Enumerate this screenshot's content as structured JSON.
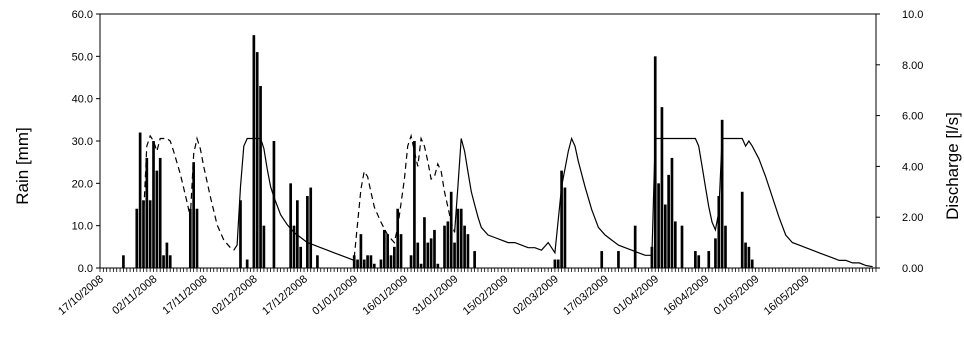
{
  "chart_data": {
    "type": "bar",
    "title": "",
    "ylabel": "Rain [mm]",
    "y2label": "Discharge [l/s]",
    "ylim": [
      0,
      60
    ],
    "y2lim": [
      0,
      10
    ],
    "xlim_days": [
      0,
      232
    ],
    "yticks": [
      "0.0",
      "10.0",
      "20.0",
      "30.0",
      "40.0",
      "50.0",
      "60.0"
    ],
    "y2ticks": [
      "0.00",
      "2.00",
      "4.00",
      "6.00",
      "8.00",
      "10.0"
    ],
    "xticks": [
      {
        "label": "17/10/2008",
        "day": 0
      },
      {
        "label": "02/11/2008",
        "day": 16
      },
      {
        "label": "17/11/2008",
        "day": 31
      },
      {
        "label": "02/12/2008",
        "day": 46
      },
      {
        "label": "17/12/2008",
        "day": 61
      },
      {
        "label": "01/01/2009",
        "day": 76
      },
      {
        "label": "16/01/2009",
        "day": 91
      },
      {
        "label": "31/01/2009",
        "day": 106
      },
      {
        "label": "15/02/2009",
        "day": 121
      },
      {
        "label": "02/03/2009",
        "day": 136
      },
      {
        "label": "17/03/2009",
        "day": 151
      },
      {
        "label": "01/04/2009",
        "day": 166
      },
      {
        "label": "16/04/2009",
        "day": 181
      },
      {
        "label": "01/05/2009",
        "day": 196
      },
      {
        "label": "16/05/2009",
        "day": 211
      }
    ],
    "series": [
      {
        "type": "bar",
        "axis": "left",
        "color": "#000000",
        "points": [
          {
            "day": 7,
            "value": 3
          },
          {
            "day": 11,
            "value": 14
          },
          {
            "day": 12,
            "value": 32
          },
          {
            "day": 13,
            "value": 16
          },
          {
            "day": 14,
            "value": 26
          },
          {
            "day": 15,
            "value": 16
          },
          {
            "day": 16,
            "value": 30
          },
          {
            "day": 17,
            "value": 23
          },
          {
            "day": 18,
            "value": 26
          },
          {
            "day": 19,
            "value": 3
          },
          {
            "day": 20,
            "value": 6
          },
          {
            "day": 21,
            "value": 3
          },
          {
            "day": 27,
            "value": 14
          },
          {
            "day": 28,
            "value": 25
          },
          {
            "day": 29,
            "value": 14
          },
          {
            "day": 42,
            "value": 16
          },
          {
            "day": 44,
            "value": 2
          },
          {
            "day": 46,
            "value": 55
          },
          {
            "day": 47,
            "value": 51
          },
          {
            "day": 48,
            "value": 43
          },
          {
            "day": 49,
            "value": 10
          },
          {
            "day": 52,
            "value": 30
          },
          {
            "day": 57,
            "value": 20
          },
          {
            "day": 58,
            "value": 10
          },
          {
            "day": 59,
            "value": 16
          },
          {
            "day": 60,
            "value": 5
          },
          {
            "day": 62,
            "value": 17
          },
          {
            "day": 63,
            "value": 19
          },
          {
            "day": 65,
            "value": 3
          },
          {
            "day": 76,
            "value": 3
          },
          {
            "day": 77,
            "value": 2
          },
          {
            "day": 78,
            "value": 8
          },
          {
            "day": 79,
            "value": 2
          },
          {
            "day": 80,
            "value": 3
          },
          {
            "day": 81,
            "value": 3
          },
          {
            "day": 82,
            "value": 1
          },
          {
            "day": 84,
            "value": 2
          },
          {
            "day": 85,
            "value": 9
          },
          {
            "day": 86,
            "value": 8
          },
          {
            "day": 87,
            "value": 3
          },
          {
            "day": 88,
            "value": 5
          },
          {
            "day": 89,
            "value": 14
          },
          {
            "day": 90,
            "value": 8
          },
          {
            "day": 93,
            "value": 3
          },
          {
            "day": 94,
            "value": 30
          },
          {
            "day": 95,
            "value": 6
          },
          {
            "day": 96,
            "value": 1
          },
          {
            "day": 97,
            "value": 12
          },
          {
            "day": 98,
            "value": 6
          },
          {
            "day": 99,
            "value": 7
          },
          {
            "day": 100,
            "value": 9
          },
          {
            "day": 101,
            "value": 1
          },
          {
            "day": 103,
            "value": 10
          },
          {
            "day": 104,
            "value": 11
          },
          {
            "day": 105,
            "value": 18
          },
          {
            "day": 106,
            "value": 6
          },
          {
            "day": 107,
            "value": 14
          },
          {
            "day": 108,
            "value": 14
          },
          {
            "day": 109,
            "value": 10
          },
          {
            "day": 110,
            "value": 8
          },
          {
            "day": 112,
            "value": 4
          },
          {
            "day": 136,
            "value": 2
          },
          {
            "day": 137,
            "value": 2
          },
          {
            "day": 138,
            "value": 23
          },
          {
            "day": 139,
            "value": 19
          },
          {
            "day": 150,
            "value": 4
          },
          {
            "day": 155,
            "value": 4
          },
          {
            "day": 160,
            "value": 10
          },
          {
            "day": 165,
            "value": 5
          },
          {
            "day": 166,
            "value": 50
          },
          {
            "day": 167,
            "value": 20
          },
          {
            "day": 168,
            "value": 38
          },
          {
            "day": 169,
            "value": 15
          },
          {
            "day": 170,
            "value": 22
          },
          {
            "day": 171,
            "value": 26
          },
          {
            "day": 172,
            "value": 11
          },
          {
            "day": 174,
            "value": 10
          },
          {
            "day": 178,
            "value": 4
          },
          {
            "day": 179,
            "value": 3
          },
          {
            "day": 182,
            "value": 4
          },
          {
            "day": 184,
            "value": 7
          },
          {
            "day": 185,
            "value": 17
          },
          {
            "day": 186,
            "value": 35
          },
          {
            "day": 187,
            "value": 10
          },
          {
            "day": 192,
            "value": 18
          },
          {
            "day": 193,
            "value": 6
          },
          {
            "day": 194,
            "value": 5
          },
          {
            "day": 195,
            "value": 2
          }
        ]
      },
      {
        "type": "line",
        "axis": "right",
        "dash": "dashed",
        "color": "#000000",
        "segments": [
          [
            [
              13,
              2.0
            ],
            [
              14,
              4.8
            ],
            [
              15,
              5.2
            ],
            [
              16,
              5.0
            ],
            [
              17,
              4.6
            ],
            [
              18,
              5.1
            ],
            [
              20,
              5.1
            ],
            [
              21,
              5.0
            ],
            [
              22,
              4.6
            ],
            [
              24,
              3.7
            ],
            [
              26,
              2.6
            ],
            [
              27,
              2.0
            ],
            [
              28,
              4.5
            ],
            [
              29,
              5.1
            ],
            [
              30,
              4.7
            ],
            [
              31,
              4.0
            ],
            [
              33,
              2.8
            ],
            [
              35,
              1.7
            ],
            [
              37,
              1.1
            ],
            [
              39,
              0.8
            ],
            [
              40,
              0.7
            ]
          ],
          [
            [
              76,
              0.4
            ],
            [
              78,
              3.1
            ],
            [
              79,
              3.8
            ],
            [
              80,
              3.6
            ],
            [
              81,
              3.0
            ],
            [
              82,
              2.4
            ],
            [
              84,
              1.8
            ],
            [
              86,
              1.3
            ],
            [
              88,
              1.0
            ],
            [
              89,
              1.6
            ],
            [
              91,
              3.5
            ],
            [
              92,
              4.8
            ],
            [
              93,
              5.2
            ],
            [
              94,
              4.6
            ],
            [
              95,
              4.0
            ],
            [
              96,
              5.1
            ],
            [
              97,
              4.8
            ],
            [
              98,
              4.2
            ],
            [
              99,
              3.5
            ],
            [
              100,
              3.6
            ],
            [
              101,
              4.1
            ],
            [
              102,
              3.8
            ],
            [
              103,
              3.0
            ],
            [
              104,
              2.4
            ],
            [
              105,
              1.8
            ],
            [
              106,
              1.4
            ]
          ]
        ]
      },
      {
        "type": "line",
        "axis": "right",
        "dash": "solid",
        "color": "#000000",
        "segments": [
          [
            [
              40,
              0.7
            ],
            [
              41,
              0.9
            ],
            [
              42,
              3.2
            ],
            [
              43,
              4.8
            ],
            [
              44,
              5.1
            ],
            [
              48,
              5.1
            ],
            [
              49,
              4.7
            ],
            [
              50,
              3.9
            ],
            [
              51,
              3.2
            ],
            [
              52,
              2.8
            ],
            [
              54,
              2.1
            ],
            [
              56,
              1.7
            ],
            [
              58,
              1.4
            ],
            [
              60,
              1.2
            ],
            [
              62,
              1.0
            ],
            [
              64,
              0.9
            ],
            [
              66,
              0.8
            ],
            [
              68,
              0.7
            ],
            [
              70,
              0.6
            ],
            [
              72,
              0.5
            ],
            [
              74,
              0.4
            ],
            [
              76,
              0.3
            ]
          ],
          [
            [
              106,
              1.4
            ],
            [
              107,
              3.2
            ],
            [
              108,
              5.1
            ],
            [
              109,
              4.6
            ],
            [
              110,
              3.8
            ],
            [
              111,
              3.0
            ],
            [
              112,
              2.5
            ],
            [
              113,
              2.0
            ],
            [
              114,
              1.6
            ],
            [
              116,
              1.3
            ],
            [
              118,
              1.2
            ],
            [
              120,
              1.1
            ],
            [
              122,
              1.0
            ],
            [
              124,
              1.0
            ],
            [
              126,
              0.9
            ],
            [
              128,
              0.8
            ],
            [
              130,
              0.8
            ],
            [
              132,
              0.7
            ],
            [
              134,
              1.0
            ],
            [
              135,
              0.8
            ],
            [
              136,
              0.6
            ],
            [
              138,
              3.2
            ],
            [
              140,
              4.6
            ],
            [
              141,
              5.1
            ],
            [
              142,
              4.8
            ],
            [
              143,
              4.2
            ],
            [
              145,
              3.2
            ],
            [
              147,
              2.3
            ],
            [
              149,
              1.6
            ],
            [
              151,
              1.3
            ],
            [
              153,
              1.1
            ],
            [
              155,
              0.9
            ],
            [
              157,
              0.8
            ],
            [
              159,
              0.7
            ],
            [
              161,
              0.6
            ],
            [
              163,
              0.5
            ],
            [
              165,
              0.5
            ],
            [
              166,
              5.1
            ],
            [
              178,
              5.1
            ],
            [
              179,
              4.8
            ],
            [
              180,
              4.0
            ],
            [
              181,
              3.2
            ],
            [
              182,
              2.4
            ],
            [
              183,
              1.8
            ],
            [
              184,
              1.5
            ],
            [
              185,
              2.2
            ],
            [
              186,
              5.1
            ],
            [
              192,
              5.1
            ],
            [
              193,
              4.8
            ],
            [
              194,
              5.0
            ],
            [
              195,
              4.8
            ],
            [
              197,
              4.3
            ],
            [
              199,
              3.6
            ],
            [
              201,
              2.8
            ],
            [
              203,
              2.0
            ],
            [
              205,
              1.3
            ],
            [
              207,
              1.0
            ],
            [
              209,
              0.9
            ],
            [
              211,
              0.8
            ],
            [
              213,
              0.7
            ],
            [
              215,
              0.6
            ],
            [
              217,
              0.5
            ],
            [
              219,
              0.4
            ],
            [
              221,
              0.3
            ],
            [
              223,
              0.3
            ],
            [
              225,
              0.2
            ],
            [
              227,
              0.2
            ],
            [
              229,
              0.1
            ],
            [
              231,
              0.05
            ]
          ]
        ]
      }
    ]
  }
}
